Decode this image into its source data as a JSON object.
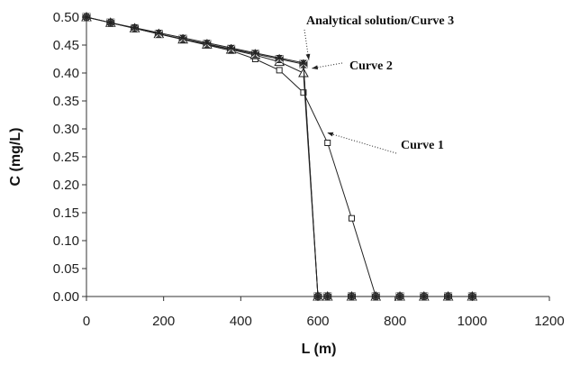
{
  "chart_data": {
    "type": "line",
    "xlabel": "L (m)",
    "ylabel": "C (mg/L)",
    "xlim": [
      0,
      1200
    ],
    "ylim": [
      0,
      0.5
    ],
    "x_ticks": [
      0,
      200,
      400,
      600,
      800,
      1000,
      1200
    ],
    "x_tick_labels": [
      "0",
      "200",
      "400",
      "600",
      "800",
      "1000",
      "1200"
    ],
    "y_ticks": [
      0,
      0.05,
      0.1,
      0.15,
      0.2,
      0.25,
      0.3,
      0.35,
      0.4,
      0.45,
      0.5
    ],
    "y_tick_labels": [
      "0.00",
      "0.05",
      "0.10",
      "0.15",
      "0.20",
      "0.25",
      "0.30",
      "0.35",
      "0.40",
      "0.45",
      "0.50"
    ],
    "grid": false,
    "series": [
      {
        "name": "Curve 1",
        "marker": "square-open",
        "x": [
          0,
          62.5,
          125,
          187.5,
          250,
          312.5,
          375,
          437.5,
          500,
          562.5,
          625,
          687.5,
          750,
          812.5,
          875,
          937.5,
          1000
        ],
        "y": [
          0.5,
          0.49,
          0.48,
          0.47,
          0.46,
          0.45,
          0.44,
          0.425,
          0.405,
          0.365,
          0.275,
          0.14,
          0.0,
          0.0,
          0.0,
          0.0,
          0.0
        ]
      },
      {
        "name": "Curve 2",
        "marker": "triangle-open",
        "x": [
          0,
          62.5,
          125,
          187.5,
          250,
          312.5,
          375,
          437.5,
          500,
          562.5,
          600,
          625,
          687.5,
          750,
          812.5,
          875,
          937.5,
          1000
        ],
        "y": [
          0.5,
          0.49,
          0.48,
          0.47,
          0.46,
          0.451,
          0.442,
          0.432,
          0.42,
          0.4,
          0.0,
          0.0,
          0.0,
          0.0,
          0.0,
          0.0,
          0.0,
          0.0
        ]
      },
      {
        "name": "Curve 3",
        "marker": "x-box",
        "x": [
          0,
          62.5,
          125,
          187.5,
          250,
          312.5,
          375,
          437.5,
          500,
          562.5,
          600,
          625,
          687.5,
          750,
          812.5,
          875,
          937.5,
          1000
        ],
        "y": [
          0.5,
          0.49,
          0.48,
          0.47,
          0.461,
          0.452,
          0.443,
          0.434,
          0.425,
          0.416,
          0.0,
          0.0,
          0.0,
          0.0,
          0.0,
          0.0,
          0.0,
          0.0
        ]
      },
      {
        "name": "Analytical solution",
        "marker": "asterisk",
        "x": [
          0,
          62.5,
          125,
          187.5,
          250,
          312.5,
          375,
          437.5,
          500,
          562.5,
          600,
          625,
          687.5,
          750,
          812.5,
          875,
          937.5,
          1000
        ],
        "y": [
          0.5,
          0.49,
          0.481,
          0.472,
          0.463,
          0.454,
          0.445,
          0.436,
          0.427,
          0.418,
          0.0,
          0.0,
          0.0,
          0.0,
          0.0,
          0.0,
          0.0,
          0.0
        ]
      }
    ],
    "annotations": [
      {
        "id": "ann-analytical",
        "text": "Analytical solution/Curve 3",
        "target": [
          562.5,
          0.42
        ]
      },
      {
        "id": "ann-curve2",
        "text": "Curve 2",
        "target": [
          570,
          0.405
        ]
      },
      {
        "id": "ann-curve1",
        "text": "Curve 1",
        "target": [
          610,
          0.29
        ]
      }
    ]
  }
}
